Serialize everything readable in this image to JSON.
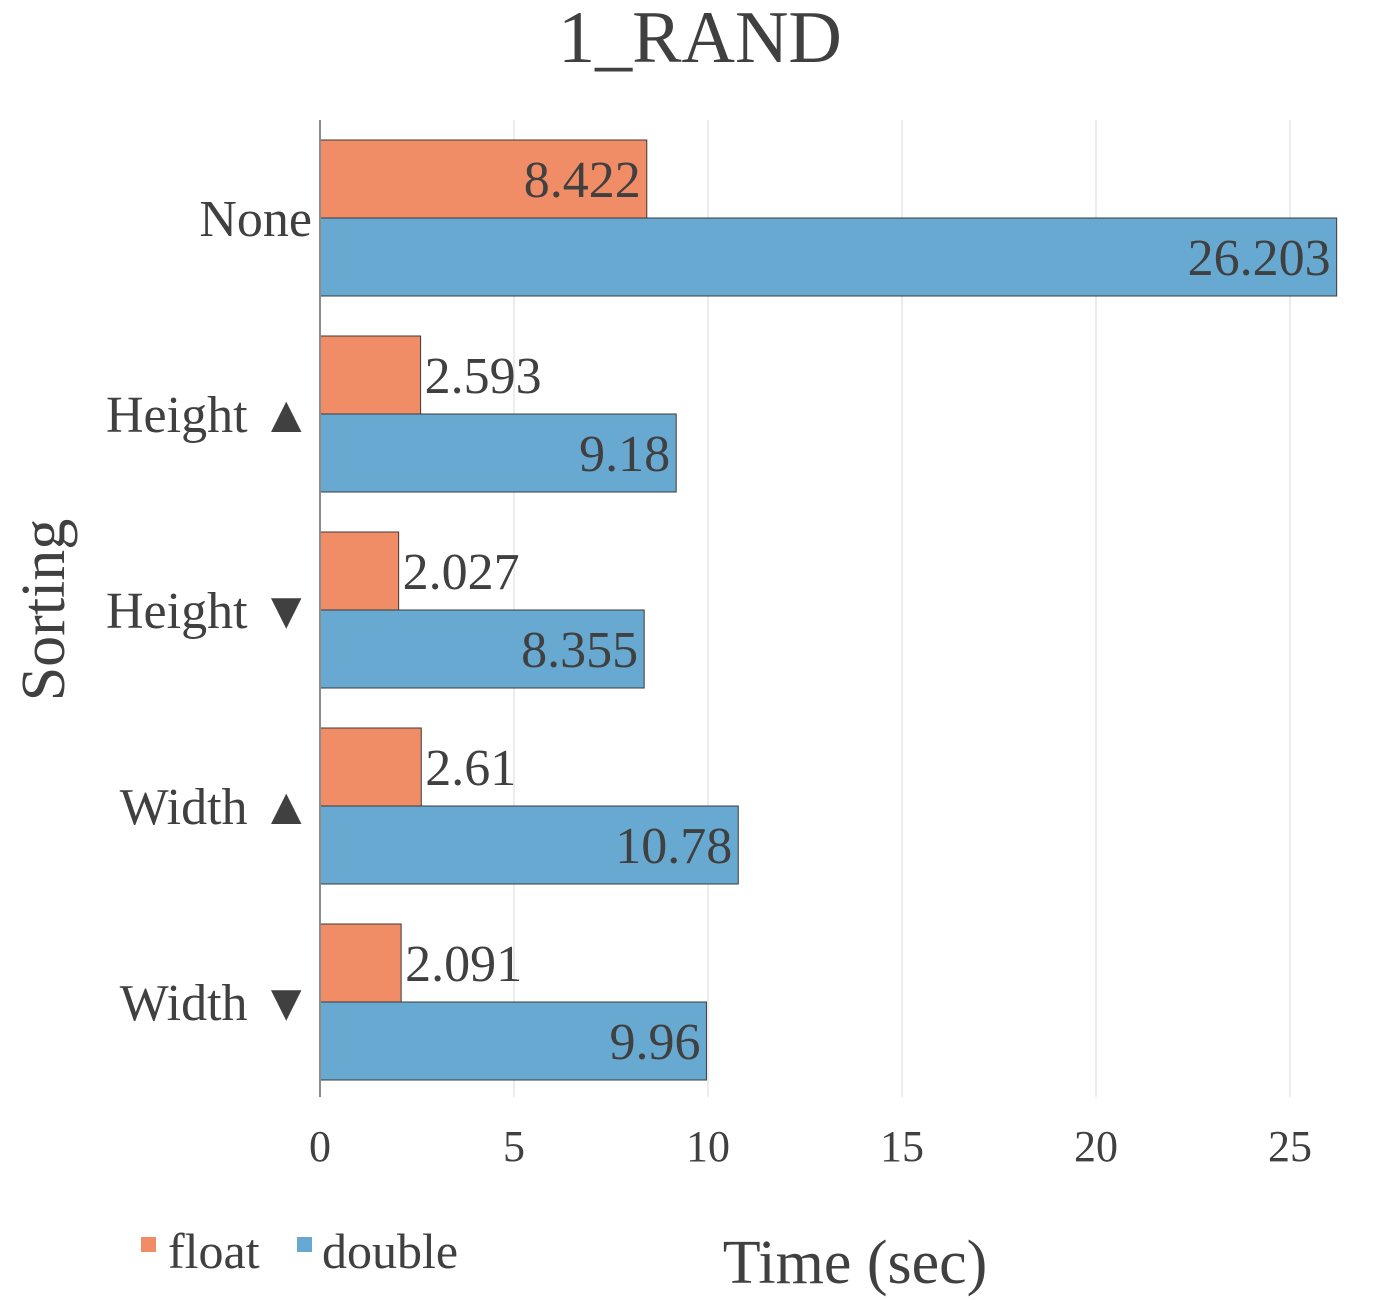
{
  "chart_data": {
    "type": "bar",
    "orientation": "horizontal",
    "title": "1_RAND",
    "xlabel": "Time (sec)",
    "ylabel": "Sorting",
    "categories": [
      "None",
      "Height ▲",
      "Height ▼",
      "Width ▲",
      "Width ▼"
    ],
    "series": [
      {
        "name": "float",
        "color": "#f08c66",
        "values": [
          8.422,
          2.593,
          2.027,
          2.61,
          2.091
        ],
        "labels": [
          "8.422",
          "2.593",
          "2.027",
          "2.61",
          "2.091"
        ]
      },
      {
        "name": "double",
        "color": "#67a9d1",
        "values": [
          26.203,
          9.18,
          8.355,
          10.78,
          9.96
        ],
        "labels": [
          "26.203",
          "9.18",
          "8.355",
          "10.78",
          "9.96"
        ]
      }
    ],
    "xlim": [
      0,
      27
    ],
    "xticks": [
      0,
      5,
      10,
      15,
      20,
      25
    ],
    "xtick_labels": [
      "0",
      "5",
      "10",
      "15",
      "20",
      "25"
    ],
    "grid": "vertical",
    "legend_position": "bottom-left"
  }
}
